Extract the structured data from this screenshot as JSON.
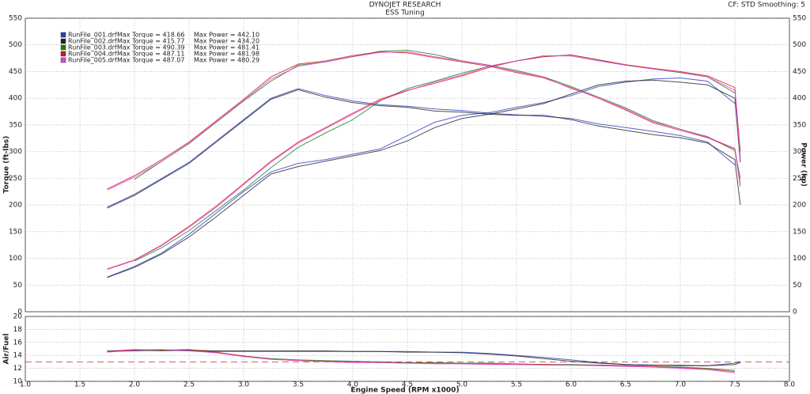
{
  "chart_data": {
    "type": "line",
    "title": "DYNOJET RESEARCH",
    "subtitle": "ESS Tuning",
    "annotation": "CF: STD  Smoothing: 5",
    "xlabel": "Engine Speed (RPM x1000)",
    "ylabel": "Torque (ft-lbs)",
    "y2label": "Power (hp)",
    "afr_ylabel": "Air/Fuel",
    "x": [
      1.75,
      2.0,
      2.25,
      2.5,
      2.75,
      3.0,
      3.25,
      3.5,
      3.75,
      4.0,
      4.25,
      4.5,
      4.75,
      5.0,
      5.25,
      5.5,
      5.75,
      6.0,
      6.25,
      6.5,
      6.75,
      7.0,
      7.25,
      7.5,
      7.55
    ],
    "xlim": [
      1.0,
      8.0
    ],
    "xticks": [
      {
        "value": 1.0,
        "label": "1.0"
      },
      {
        "value": 1.5,
        "label": "1.5"
      },
      {
        "value": 2.0,
        "label": "2.0"
      },
      {
        "value": 2.5,
        "label": "2.5"
      },
      {
        "value": 3.0,
        "label": "3.0"
      },
      {
        "value": 3.5,
        "label": "3.5"
      },
      {
        "value": 4.0,
        "label": "4.0"
      },
      {
        "value": 4.5,
        "label": "4.5"
      },
      {
        "value": 5.0,
        "label": "5.0"
      },
      {
        "value": 5.5,
        "label": "5.5"
      },
      {
        "value": 6.0,
        "label": "6.0"
      },
      {
        "value": 6.5,
        "label": "6.5"
      },
      {
        "value": 7.0,
        "label": "7.0"
      },
      {
        "value": 7.5,
        "label": "7.5"
      },
      {
        "value": 8.0,
        "label": "8.0"
      }
    ],
    "ylim": [
      0,
      550
    ],
    "yticks": [
      0,
      50,
      100,
      150,
      200,
      250,
      300,
      350,
      400,
      450,
      500,
      550
    ],
    "y2lim": [
      0,
      550
    ],
    "y2ticks": [
      0,
      50,
      100,
      150,
      200,
      250,
      300,
      350,
      400,
      450,
      500,
      550
    ],
    "afr_ylim": [
      10,
      20
    ],
    "afr_yticks": [
      10,
      12,
      14,
      16,
      18,
      20
    ],
    "afr_reference": 13,
    "grid": true,
    "series": [
      {
        "name": "RunFile_001.drf",
        "max_torque": "Max Torque = 418.66",
        "max_power": "Max Power = 442.10",
        "color": "#2a3fc0",
        "torque": [
          196,
          220,
          250,
          280,
          320,
          360,
          400,
          418,
          405,
          395,
          388,
          385,
          380,
          377,
          372,
          369,
          366,
          362,
          352,
          345,
          338,
          330,
          318,
          275,
          null
        ],
        "power": [
          65,
          85,
          110,
          145,
          185,
          225,
          262,
          278,
          285,
          295,
          305,
          330,
          355,
          368,
          373,
          383,
          392,
          405,
          422,
          430,
          436,
          438,
          432,
          390,
          null
        ],
        "afr": [
          14.7,
          14.8,
          14.8,
          14.7,
          14.6,
          14.6,
          14.6,
          14.6,
          14.6,
          14.6,
          14.6,
          14.6,
          14.5,
          14.5,
          14.3,
          14.0,
          13.7,
          13.3,
          12.9,
          12.6,
          12.5,
          12.5,
          12.4,
          12.8,
          13.0
        ]
      },
      {
        "name": "RunFile_002.drf",
        "max_torque": "Max Torque = 415.77",
        "max_power": "Max Power = 434.20",
        "color": "#222222",
        "torque": [
          194,
          218,
          248,
          278,
          318,
          358,
          398,
          416,
          402,
          392,
          386,
          383,
          376,
          374,
          370,
          368,
          368,
          360,
          348,
          340,
          332,
          326,
          316,
          285,
          200
        ],
        "power": [
          64,
          83,
          108,
          140,
          178,
          218,
          258,
          272,
          282,
          292,
          302,
          320,
          345,
          362,
          370,
          380,
          390,
          408,
          425,
          432,
          434,
          430,
          425,
          400,
          280
        ],
        "afr": [
          14.6,
          14.7,
          14.8,
          14.8,
          14.7,
          14.7,
          14.7,
          14.7,
          14.7,
          14.6,
          14.6,
          14.5,
          14.5,
          14.4,
          14.2,
          13.9,
          13.5,
          13.1,
          12.8,
          12.6,
          12.5,
          12.4,
          12.4,
          12.6,
          12.9
        ]
      },
      {
        "name": "RunFile_003.drf",
        "max_torque": "Max Torque = 490.39",
        "max_power": "Max Power = 481.41",
        "color": "#1a7f1a",
        "torque": [
          null,
          248,
          282,
          315,
          355,
          395,
          432,
          462,
          468,
          478,
          488,
          490,
          482,
          470,
          462,
          452,
          440,
          422,
          402,
          382,
          358,
          342,
          328,
          302,
          250
        ],
        "power": [
          null,
          95,
          120,
          152,
          190,
          228,
          270,
          308,
          335,
          360,
          395,
          418,
          432,
          447,
          460,
          470,
          478,
          481,
          472,
          462,
          455,
          448,
          440,
          410,
          null
        ],
        "afr": [
          null,
          14.8,
          14.7,
          14.8,
          14.4,
          13.9,
          13.5,
          13.3,
          13.2,
          13.1,
          13.0,
          12.9,
          12.9,
          12.8,
          12.8,
          12.7,
          12.6,
          12.6,
          12.5,
          12.4,
          12.3,
          12.2,
          12.0,
          11.7,
          null
        ]
      },
      {
        "name": "RunFile_004.drf",
        "max_torque": "Max Torque = 487.11",
        "max_power": "Max Power = 481.98",
        "color": "#d01818",
        "torque": [
          230,
          255,
          285,
          318,
          358,
          398,
          440,
          464,
          470,
          480,
          487,
          485,
          476,
          468,
          460,
          448,
          438,
          420,
          400,
          378,
          354,
          340,
          326,
          305,
          235
        ],
        "power": [
          80,
          97,
          125,
          160,
          198,
          240,
          282,
          318,
          345,
          372,
          398,
          415,
          428,
          442,
          458,
          470,
          478,
          481,
          472,
          463,
          456,
          450,
          442,
          420,
          300
        ],
        "afr": [
          14.6,
          14.9,
          14.8,
          14.9,
          14.5,
          13.9,
          13.4,
          13.2,
          13.1,
          13.0,
          12.9,
          12.8,
          12.8,
          12.7,
          12.7,
          12.6,
          12.6,
          12.5,
          12.5,
          12.4,
          12.3,
          12.1,
          11.9,
          11.5,
          null
        ]
      },
      {
        "name": "RunFile_005.drf",
        "max_torque": "Max Torque = 487.07",
        "max_power": "Max Power = 480.29",
        "color": "#e040e0",
        "torque": [
          228,
          252,
          282,
          316,
          356,
          396,
          436,
          460,
          468,
          478,
          486,
          487,
          478,
          470,
          462,
          450,
          440,
          418,
          402,
          380,
          356,
          342,
          327,
          306,
          240
        ],
        "power": [
          79,
          96,
          124,
          158,
          196,
          238,
          280,
          316,
          343,
          370,
          396,
          414,
          430,
          444,
          460,
          470,
          480,
          479,
          470,
          462,
          455,
          449,
          440,
          415,
          290
        ],
        "afr": [
          14.5,
          14.8,
          14.9,
          14.7,
          14.4,
          13.8,
          13.4,
          13.2,
          13.0,
          12.9,
          12.9,
          12.8,
          12.7,
          12.7,
          12.6,
          12.6,
          12.5,
          12.5,
          12.4,
          12.3,
          12.2,
          12.0,
          11.8,
          11.3,
          null
        ]
      }
    ]
  }
}
